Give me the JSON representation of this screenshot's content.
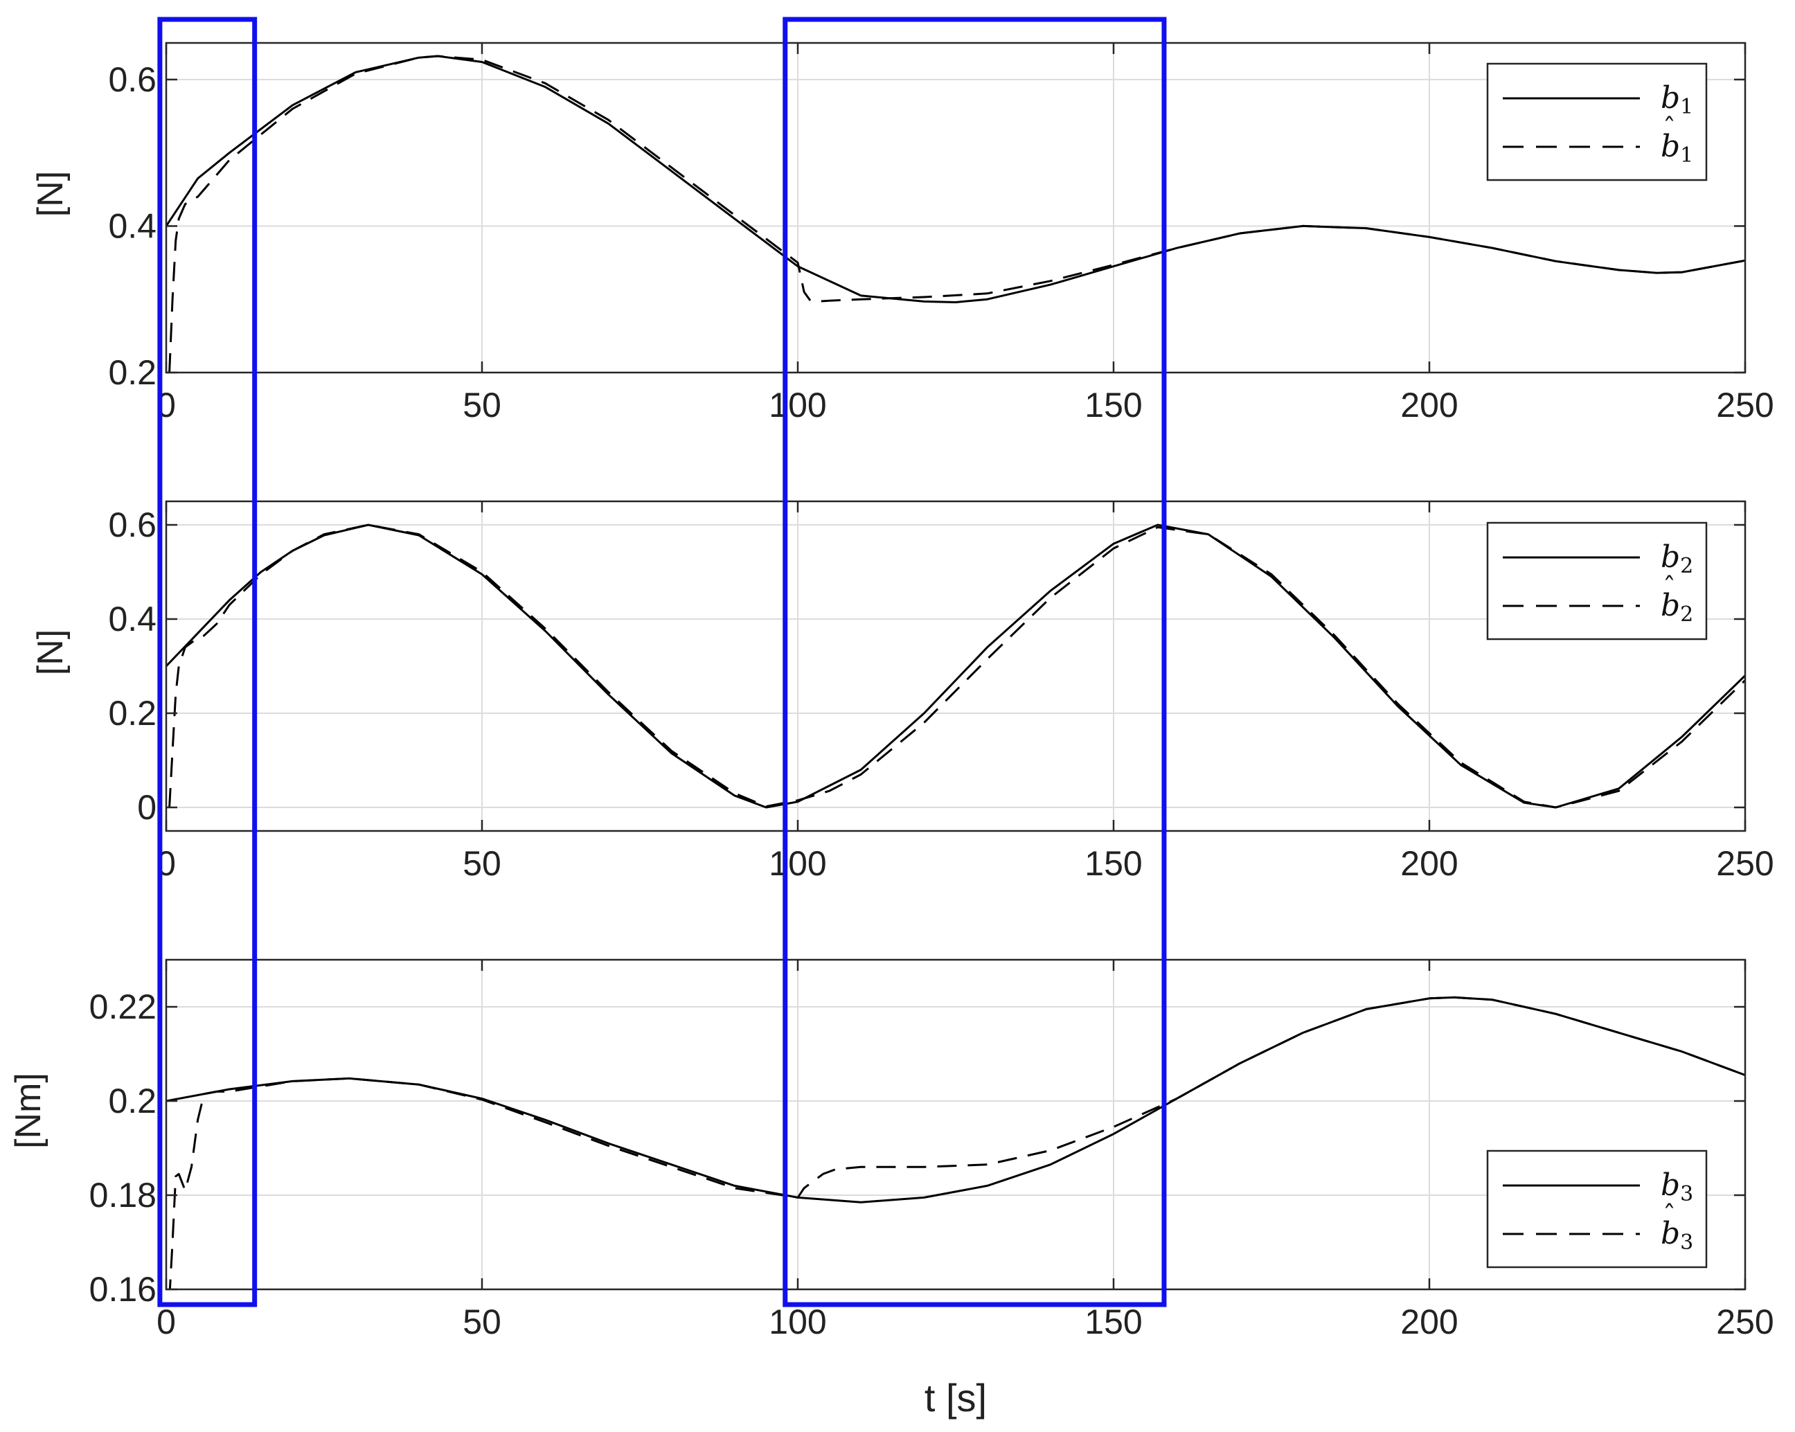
{
  "chart_data": [
    {
      "type": "line",
      "ylabel": "[N]",
      "xlabel": "",
      "xlim": [
        0,
        250
      ],
      "ylim": [
        0.2,
        0.65
      ],
      "xticks": [
        0,
        50,
        100,
        150,
        200,
        250
      ],
      "yticks": [
        0.2,
        0.4,
        0.6
      ],
      "ytick_labels": [
        "0.2",
        "0.4",
        "0.6"
      ],
      "grid": true,
      "legend_position": "top-right",
      "series": [
        {
          "name": "b1",
          "style": "solid",
          "x": [
            0,
            5,
            10,
            20,
            30,
            40,
            43,
            50,
            60,
            70,
            80,
            90,
            100,
            110,
            120,
            125,
            130,
            140,
            150,
            160,
            170,
            180,
            190,
            200,
            210,
            220,
            230,
            236,
            240,
            250
          ],
          "y": [
            0.4,
            0.465,
            0.5,
            0.565,
            0.61,
            0.63,
            0.632,
            0.624,
            0.59,
            0.54,
            0.475,
            0.41,
            0.345,
            0.305,
            0.297,
            0.296,
            0.3,
            0.32,
            0.345,
            0.37,
            0.39,
            0.4,
            0.397,
            0.385,
            0.37,
            0.352,
            0.34,
            0.336,
            0.337,
            0.353
          ]
        },
        {
          "name": "b̂1",
          "style": "dashed",
          "x": [
            0.5,
            1,
            1.5,
            2,
            3,
            4,
            5,
            6,
            8,
            10,
            20,
            30,
            40,
            43,
            50,
            60,
            70,
            80,
            90,
            100,
            100.5,
            101,
            102,
            103,
            105,
            110,
            120,
            130,
            140,
            150,
            160,
            170,
            180,
            190,
            200,
            210,
            220,
            230,
            236,
            240,
            250
          ],
          "y": [
            0.2,
            0.3,
            0.38,
            0.41,
            0.43,
            0.435,
            0.44,
            0.45,
            0.47,
            0.49,
            0.56,
            0.608,
            0.63,
            0.632,
            0.627,
            0.595,
            0.545,
            0.48,
            0.415,
            0.35,
            0.33,
            0.31,
            0.298,
            0.297,
            0.298,
            0.3,
            0.303,
            0.308,
            0.325,
            0.347,
            0.37,
            0.39,
            0.4,
            0.397,
            0.385,
            0.37,
            0.352,
            0.34,
            0.336,
            0.337,
            0.353
          ]
        }
      ]
    },
    {
      "type": "line",
      "ylabel": "[N]",
      "xlabel": "",
      "xlim": [
        0,
        250
      ],
      "ylim": [
        -0.05,
        0.65
      ],
      "xticks": [
        0,
        50,
        100,
        150,
        200,
        250
      ],
      "yticks": [
        0,
        0.2,
        0.4,
        0.6
      ],
      "ytick_labels": [
        "0",
        "0.2",
        "0.4",
        "0.6"
      ],
      "grid": true,
      "legend_position": "top-right",
      "series": [
        {
          "name": "b2",
          "style": "solid",
          "x": [
            0,
            5,
            10,
            15,
            20,
            25,
            32,
            40,
            50,
            60,
            70,
            80,
            90,
            95,
            100,
            110,
            120,
            130,
            140,
            150,
            157,
            165,
            175,
            185,
            195,
            205,
            215,
            220,
            230,
            240,
            250
          ],
          "y": [
            0.3,
            0.37,
            0.44,
            0.5,
            0.545,
            0.578,
            0.6,
            0.578,
            0.495,
            0.375,
            0.24,
            0.115,
            0.025,
            0.0,
            0.012,
            0.08,
            0.2,
            0.34,
            0.46,
            0.56,
            0.6,
            0.58,
            0.49,
            0.36,
            0.215,
            0.09,
            0.01,
            0.0,
            0.04,
            0.15,
            0.28
          ]
        },
        {
          "name": "b̂2",
          "style": "dashed",
          "x": [
            0.5,
            1,
            1.5,
            2,
            3,
            5,
            6,
            8,
            10,
            15,
            20,
            25,
            32,
            40,
            50,
            60,
            70,
            80,
            90,
            95,
            100,
            105,
            110,
            120,
            130,
            140,
            150,
            157,
            165,
            175,
            185,
            195,
            205,
            215,
            220,
            230,
            240,
            250
          ],
          "y": [
            0.0,
            0.12,
            0.24,
            0.3,
            0.34,
            0.36,
            0.365,
            0.39,
            0.43,
            0.495,
            0.545,
            0.58,
            0.6,
            0.58,
            0.5,
            0.38,
            0.245,
            0.12,
            0.03,
            0.002,
            0.015,
            0.035,
            0.07,
            0.18,
            0.315,
            0.445,
            0.55,
            0.595,
            0.58,
            0.495,
            0.365,
            0.22,
            0.095,
            0.012,
            0.0,
            0.035,
            0.14,
            0.27
          ]
        }
      ]
    },
    {
      "type": "line",
      "ylabel": "[Nm]",
      "xlabel": "t [s]",
      "xlim": [
        0,
        250
      ],
      "ylim": [
        0.16,
        0.23
      ],
      "xticks": [
        0,
        50,
        100,
        150,
        200,
        250
      ],
      "yticks": [
        0.16,
        0.18,
        0.2,
        0.22
      ],
      "ytick_labels": [
        "0.16",
        "0.18",
        "0.2",
        "0.22"
      ],
      "grid": true,
      "legend_position": "bottom-right",
      "series": [
        {
          "name": "b3",
          "style": "solid",
          "x": [
            0,
            10,
            20,
            29,
            40,
            50,
            60,
            70,
            80,
            90,
            100,
            110,
            120,
            130,
            140,
            150,
            160,
            170,
            180,
            190,
            200,
            204,
            210,
            220,
            230,
            240,
            250
          ],
          "y": [
            0.2,
            0.2025,
            0.2042,
            0.2048,
            0.2035,
            0.2005,
            0.196,
            0.191,
            0.1865,
            0.182,
            0.1795,
            0.1785,
            0.1795,
            0.182,
            0.1865,
            0.193,
            0.2005,
            0.208,
            0.2145,
            0.2195,
            0.2218,
            0.222,
            0.2215,
            0.2185,
            0.2145,
            0.2105,
            0.2055
          ]
        },
        {
          "name": "b̂3",
          "style": "dashed",
          "x": [
            0.5,
            1,
            1.5,
            2,
            3,
            4,
            5,
            6,
            8,
            10,
            20,
            29,
            40,
            50,
            60,
            70,
            80,
            90,
            100,
            101,
            102,
            104,
            106,
            110,
            120,
            130,
            140,
            150,
            160,
            170,
            180,
            190,
            200,
            204,
            210,
            220,
            230,
            240,
            250
          ],
          "y": [
            0.158,
            0.17,
            0.184,
            0.1845,
            0.181,
            0.186,
            0.196,
            0.2015,
            0.202,
            0.202,
            0.2042,
            0.2048,
            0.2035,
            0.2003,
            0.1955,
            0.1905,
            0.186,
            0.1815,
            0.1795,
            0.1815,
            0.1825,
            0.1845,
            0.1855,
            0.186,
            0.186,
            0.1865,
            0.1895,
            0.1945,
            0.2005,
            0.208,
            0.2145,
            0.2195,
            0.2218,
            0.222,
            0.2215,
            0.2185,
            0.2145,
            0.2105,
            0.2055
          ]
        }
      ]
    }
  ],
  "highlight_boxes": [
    {
      "x_range": [
        -1,
        14
      ],
      "color": "#1010ee"
    },
    {
      "x_range": [
        98,
        158
      ],
      "color": "#1010ee"
    }
  ],
  "legends": [
    [
      {
        "base": "b",
        "sub": "1",
        "hat": false
      },
      {
        "base": "b",
        "sub": "1",
        "hat": true
      }
    ],
    [
      {
        "base": "b",
        "sub": "2",
        "hat": false
      },
      {
        "base": "b",
        "sub": "2",
        "hat": true
      }
    ],
    [
      {
        "base": "b",
        "sub": "3",
        "hat": false
      },
      {
        "base": "b",
        "sub": "3",
        "hat": true
      }
    ]
  ],
  "colors": {
    "line": "#000000",
    "grid": "#dcdcdc",
    "axes": "#262626",
    "highlight": "#1010ee"
  }
}
